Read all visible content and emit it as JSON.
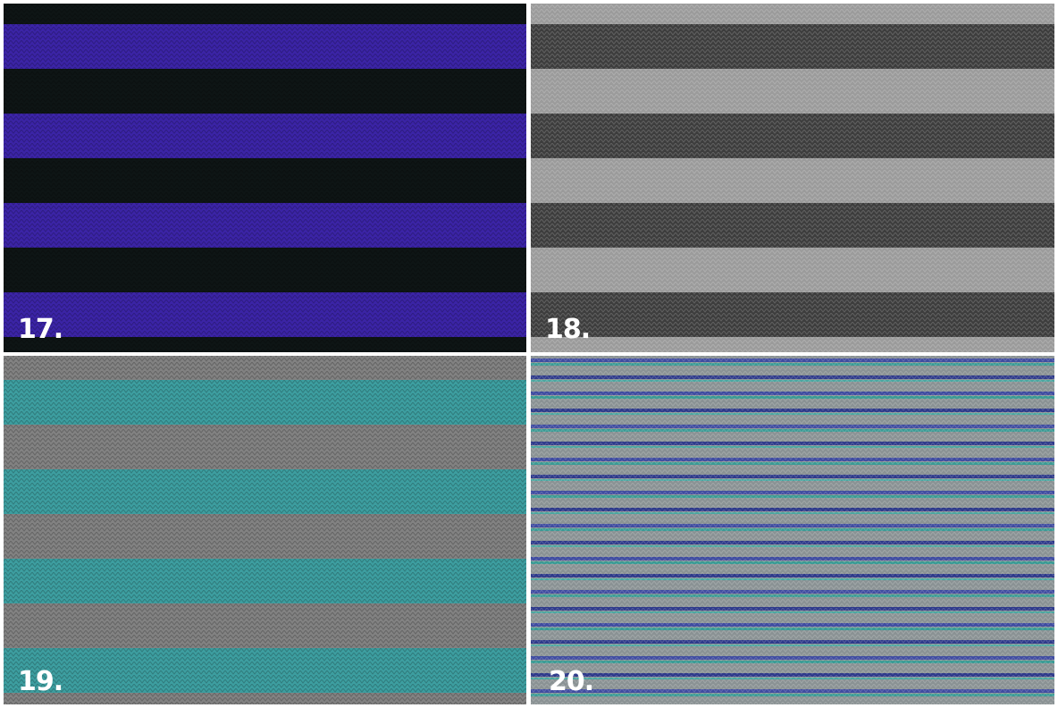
{
  "panels": [
    {
      "label": "17."
    },
    {
      "label": "18."
    },
    {
      "label": "19."
    },
    {
      "label": "20."
    }
  ]
}
